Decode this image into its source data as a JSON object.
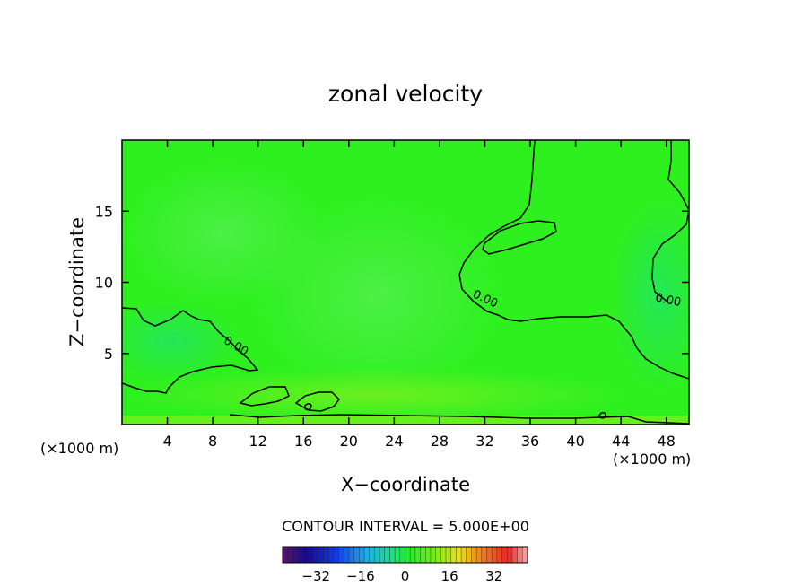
{
  "chart_data": {
    "type": "contour",
    "title": "zonal velocity",
    "xlabel": "X−coordinate",
    "ylabel": "Z−coordinate",
    "x_unit_left": "(×1000 m)",
    "x_unit_right": "(×1000 m)",
    "xlim": [
      0,
      50
    ],
    "ylim": [
      0,
      20
    ],
    "x_ticks": [
      4,
      8,
      12,
      16,
      20,
      24,
      28,
      32,
      36,
      40,
      44,
      48
    ],
    "y_ticks": [
      5,
      10,
      15
    ],
    "contour_labels": [
      {
        "text": "0.00",
        "x": 31.9,
        "z": 8.6
      },
      {
        "text": "0.00",
        "x": 9.9,
        "z": 5.3
      },
      {
        "text": "0.00",
        "x": 48.1,
        "z": 8.5
      }
    ],
    "contour_interval_text": "CONTOUR INTERVAL =  5.000E+00",
    "colorbar": {
      "min": -44,
      "max": 44,
      "ticks": [
        "−32",
        "−16",
        "0",
        "16",
        "32"
      ],
      "tick_values": [
        -32,
        -16,
        0,
        16,
        32
      ]
    },
    "colors": {
      "field_main": "#2ef01f",
      "field_light": "#48ef3c",
      "field_cyanish": "#26e85a",
      "field_yellowish": "#7ef018",
      "contour": "#000000"
    }
  }
}
